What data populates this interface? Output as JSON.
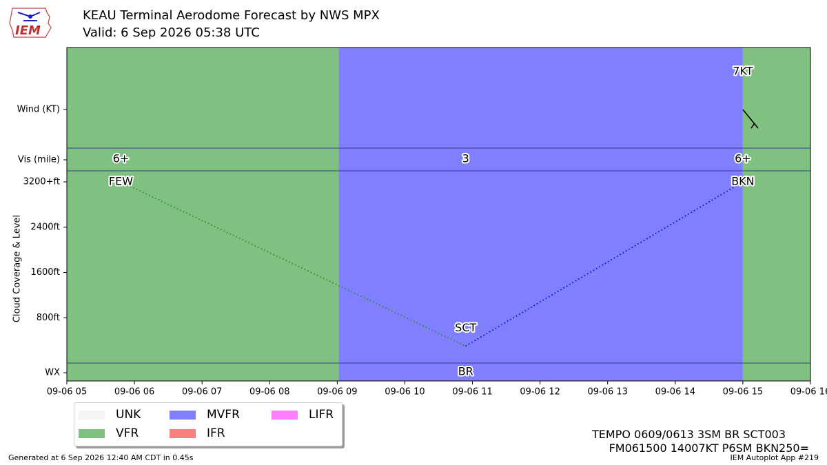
{
  "header": {
    "logo_text": "IEM",
    "title": "KEAU Terminal Aerodome Forecast by NWS MPX",
    "subtitle": "Valid: 6 Sep 2026 05:38 UTC"
  },
  "footer": {
    "generated": "Generated at 6 Sep 2026 12:40 AM CDT in 0.45s",
    "app": "IEM Autoplot App #219"
  },
  "raw_taf": [
    "TEMPO 0609/0613 3SM BR SCT003",
    "FM061500 14007KT P6SM BKN250="
  ],
  "legend": {
    "items": [
      {
        "label": "UNK",
        "color": "#f5f5f5"
      },
      {
        "label": "VFR",
        "color": "#80c080"
      },
      {
        "label": "MVFR",
        "color": "#8080ff"
      },
      {
        "label": "IFR",
        "color": "#f88080"
      },
      {
        "label": "LIFR",
        "color": "#ff80ff"
      }
    ]
  },
  "chart_data": {
    "type": "timeline",
    "x_ticks": [
      "09-06 05",
      "09-06 06",
      "09-06 07",
      "09-06 08",
      "09-06 09",
      "09-06 10",
      "09-06 11",
      "09-06 12",
      "09-06 13",
      "09-06 14",
      "09-06 15",
      "09-06 16"
    ],
    "x_range": [
      5,
      16
    ],
    "row_labels": {
      "wind": "Wind (KT)",
      "vis": "Vis (mile)",
      "wx": "WX"
    },
    "ylabel": "Cloud Coverage & Level",
    "cloud_ticks": [
      {
        "label": "800ft",
        "value": 800
      },
      {
        "label": "1600ft",
        "value": 1600
      },
      {
        "label": "2400ft",
        "value": 2400
      },
      {
        "label": "3200+ft",
        "value": 3200
      }
    ],
    "cloud_range": [
      0,
      3200
    ],
    "categories": [
      {
        "start": 5,
        "end": 9.02,
        "category": "VFR",
        "color": "#80c080"
      },
      {
        "start": 9.02,
        "end": 15,
        "category": "MVFR",
        "color": "#8080ff"
      },
      {
        "start": 15,
        "end": 16,
        "category": "VFR",
        "color": "#80c080"
      }
    ],
    "vis": [
      {
        "x": 5.8,
        "label": "6+"
      },
      {
        "x": 10.9,
        "label": "3"
      },
      {
        "x": 15.0,
        "label": "6+"
      }
    ],
    "clouds": [
      {
        "x": 5.8,
        "level": 3200,
        "label": "FEW"
      },
      {
        "x": 10.9,
        "level": 300,
        "label": "SCT"
      },
      {
        "x": 15.0,
        "level": 3200,
        "label": "BKN"
      }
    ],
    "cloud_line_colors": [
      "#228b22",
      "#0000cd"
    ],
    "wind": [
      {
        "x": 15.0,
        "dir": 140,
        "speed": 7,
        "label": "7KT"
      }
    ],
    "wx": [
      {
        "x": 10.9,
        "label": "BR"
      }
    ]
  }
}
